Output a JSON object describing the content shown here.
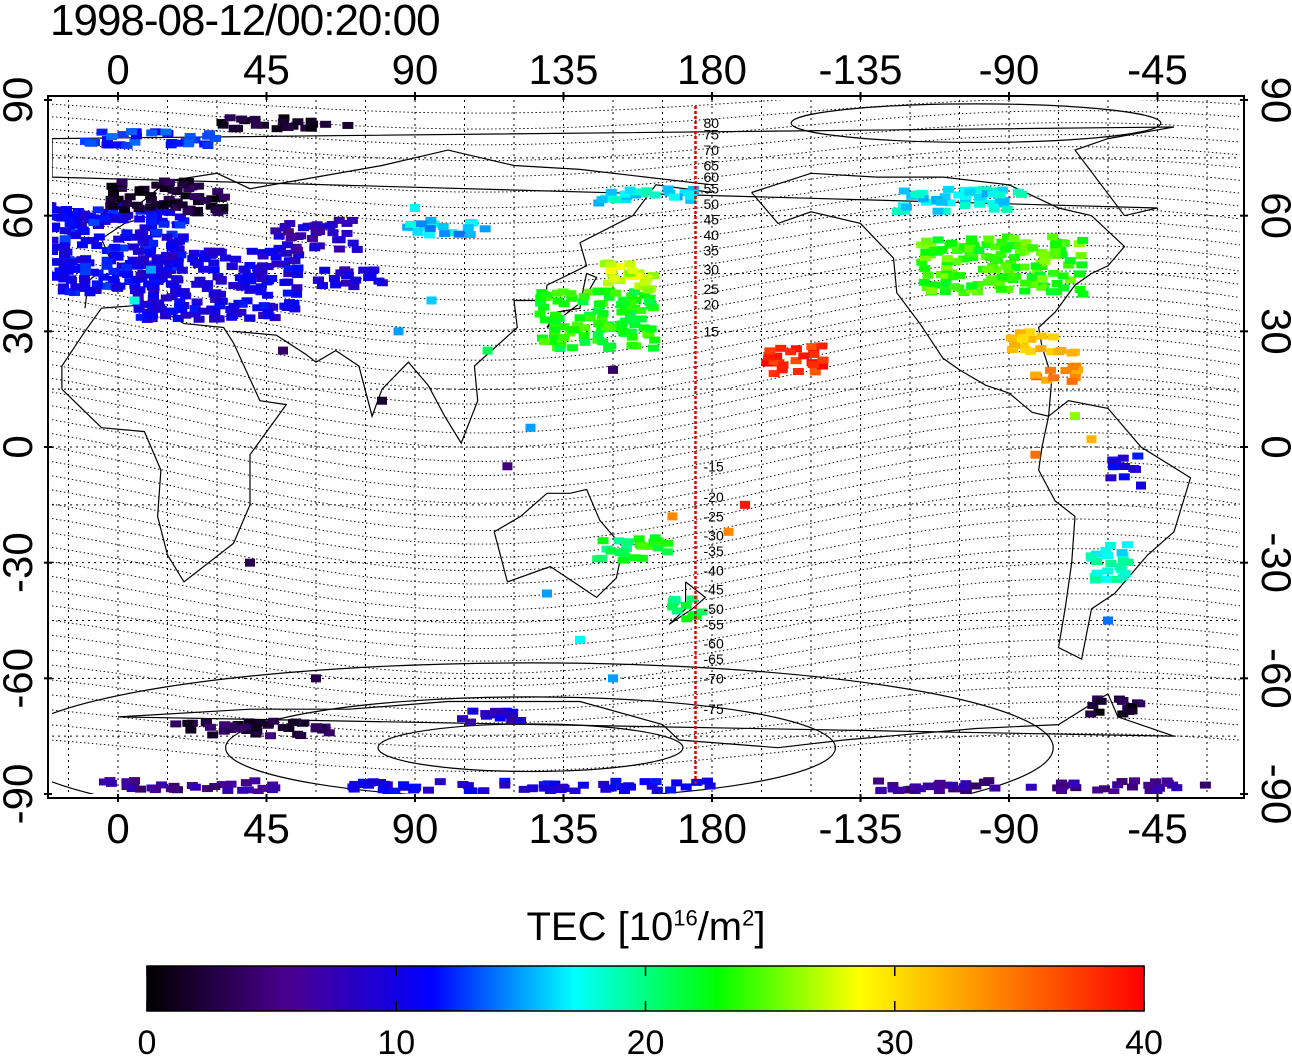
{
  "title": "1998-08-12/00:20:00",
  "map": {
    "projection": "equirectangular",
    "central_longitude": 160,
    "lon_range": [
      -20,
      340
    ],
    "lat_range": [
      -90,
      90
    ],
    "grid": true,
    "lon_ticks": [
      {
        "lon": 0,
        "label": "0"
      },
      {
        "lon": 45,
        "label": "45"
      },
      {
        "lon": 90,
        "label": "90"
      },
      {
        "lon": 135,
        "label": "135"
      },
      {
        "lon": 180,
        "label": "180"
      },
      {
        "lon": 225,
        "label": "-135"
      },
      {
        "lon": 270,
        "label": "-90"
      },
      {
        "lon": 315,
        "label": "-45"
      }
    ],
    "lat_ticks": [
      {
        "lat": 90,
        "label": "90"
      },
      {
        "lat": 60,
        "label": "60"
      },
      {
        "lat": 30,
        "label": "30"
      },
      {
        "lat": 0,
        "label": "0"
      },
      {
        "lat": -30,
        "label": "-30"
      },
      {
        "lat": -60,
        "label": "-60"
      },
      {
        "lat": -90,
        "label": "-90"
      }
    ],
    "meridian_line": {
      "lon": 175,
      "color": "#dd0000"
    },
    "magnetic_latitude_labels": [
      {
        "label": "80",
        "lat": 84
      },
      {
        "label": "75",
        "lat": 81
      },
      {
        "label": "70",
        "lat": 77
      },
      {
        "label": "65",
        "lat": 73
      },
      {
        "label": "60",
        "lat": 70
      },
      {
        "label": "55",
        "lat": 67
      },
      {
        "label": "50",
        "lat": 63
      },
      {
        "label": "45",
        "lat": 59
      },
      {
        "label": "40",
        "lat": 55
      },
      {
        "label": "35",
        "lat": 51
      },
      {
        "label": "30",
        "lat": 46
      },
      {
        "label": "25",
        "lat": 41
      },
      {
        "label": "20",
        "lat": 37
      },
      {
        "label": "15",
        "lat": 30
      },
      {
        "label": "-15",
        "lat": -5
      },
      {
        "label": "-20",
        "lat": -13
      },
      {
        "label": "-25",
        "lat": -18
      },
      {
        "label": "-30",
        "lat": -23
      },
      {
        "label": "-35",
        "lat": -27
      },
      {
        "label": "-40",
        "lat": -32
      },
      {
        "label": "-45",
        "lat": -37
      },
      {
        "label": "-50",
        "lat": -42
      },
      {
        "label": "-55",
        "lat": -46
      },
      {
        "label": "-60",
        "lat": -51
      },
      {
        "label": "-65",
        "lat": -55
      },
      {
        "label": "-70",
        "lat": -60
      },
      {
        "label": "-75",
        "lat": -68
      }
    ],
    "tec_patches": [
      {
        "lon": -10,
        "lat": 60,
        "w": 25,
        "h": 6,
        "tec": 10
      },
      {
        "lon": 0,
        "lat": 51,
        "w": 40,
        "h": 22,
        "tec": 11
      },
      {
        "lon": 15,
        "lat": 65,
        "w": 35,
        "h": 9,
        "tec": 2
      },
      {
        "lon": 30,
        "lat": 42,
        "w": 50,
        "h": 18,
        "tec": 10
      },
      {
        "lon": 60,
        "lat": 55,
        "w": 25,
        "h": 8,
        "tec": 8
      },
      {
        "lon": 70,
        "lat": 44,
        "w": 20,
        "h": 5,
        "tec": 9
      },
      {
        "lon": 10,
        "lat": 80,
        "w": 40,
        "h": 4,
        "tec": 12
      },
      {
        "lon": 50,
        "lat": 84,
        "w": 40,
        "h": 3,
        "tec": 2
      },
      {
        "lon": 100,
        "lat": 57,
        "w": 25,
        "h": 4,
        "tec": 16
      },
      {
        "lon": 145,
        "lat": 33,
        "w": 35,
        "h": 15,
        "tec": 23
      },
      {
        "lon": 155,
        "lat": 44,
        "w": 15,
        "h": 8,
        "tec": 27
      },
      {
        "lon": 160,
        "lat": 65,
        "w": 30,
        "h": 4,
        "tec": 17
      },
      {
        "lon": 150,
        "lat": -27,
        "w": 10,
        "h": 6,
        "tec": 21
      },
      {
        "lon": 162,
        "lat": -26,
        "w": 12,
        "h": 6,
        "tec": 23
      },
      {
        "lon": 172,
        "lat": -42,
        "w": 10,
        "h": 6,
        "tec": 21
      },
      {
        "lon": 205,
        "lat": 23,
        "w": 18,
        "h": 8,
        "tec": 38
      },
      {
        "lon": 268,
        "lat": 47,
        "w": 50,
        "h": 15,
        "tec": 24
      },
      {
        "lon": 255,
        "lat": 64,
        "w": 40,
        "h": 6,
        "tec": 17
      },
      {
        "lon": 280,
        "lat": 27,
        "w": 20,
        "h": 6,
        "tec": 31
      },
      {
        "lon": 285,
        "lat": 19,
        "w": 15,
        "h": 4,
        "tec": 34
      },
      {
        "lon": 304,
        "lat": -5,
        "w": 10,
        "h": 6,
        "tec": 10
      },
      {
        "lon": 300,
        "lat": -30,
        "w": 12,
        "h": 10,
        "tec": 18
      },
      {
        "lon": 302,
        "lat": -67,
        "w": 15,
        "h": 5,
        "tec": 2
      },
      {
        "lon": 125,
        "lat": -88,
        "w": 110,
        "h": 3,
        "tec": 10
      },
      {
        "lon": 20,
        "lat": -88,
        "w": 55,
        "h": 3,
        "tec": 6
      },
      {
        "lon": 280,
        "lat": -88,
        "w": 100,
        "h": 3,
        "tec": 6
      },
      {
        "lon": 42,
        "lat": -73,
        "w": 50,
        "h": 4,
        "tec": 3
      },
      {
        "lon": 115,
        "lat": -70,
        "w": 25,
        "h": 3,
        "tec": 9
      }
    ],
    "tec_points": [
      {
        "lon": 10,
        "lat": 46,
        "tec": 15
      },
      {
        "lon": 5,
        "lat": 38,
        "tec": 18
      },
      {
        "lon": 50,
        "lat": 25,
        "tec": 4
      },
      {
        "lon": 85,
        "lat": 30,
        "tec": 15
      },
      {
        "lon": 95,
        "lat": 38,
        "tec": 16
      },
      {
        "lon": 112,
        "lat": 25,
        "tec": 21
      },
      {
        "lon": 125,
        "lat": 5,
        "tec": 15
      },
      {
        "lon": 118,
        "lat": -5,
        "tec": 5
      },
      {
        "lon": 185,
        "lat": -22,
        "tec": 34
      },
      {
        "lon": 190,
        "lat": -15,
        "tec": 39
      },
      {
        "lon": 168,
        "lat": -18,
        "tec": 34
      },
      {
        "lon": 80,
        "lat": 12,
        "tec": 2
      },
      {
        "lon": 40,
        "lat": -30,
        "tec": 3
      },
      {
        "lon": 150,
        "lat": 20,
        "tec": 4
      },
      {
        "lon": 130,
        "lat": -38,
        "tec": 15
      },
      {
        "lon": 290,
        "lat": 8,
        "tec": 26
      },
      {
        "lon": 295,
        "lat": 2,
        "tec": 32
      },
      {
        "lon": 278,
        "lat": -2,
        "tec": 35
      },
      {
        "lon": 310,
        "lat": -10,
        "tec": 10
      },
      {
        "lon": 300,
        "lat": -45,
        "tec": 14
      },
      {
        "lon": 60,
        "lat": -60,
        "tec": 3
      },
      {
        "lon": 150,
        "lat": -60,
        "tec": 15
      },
      {
        "lon": 140,
        "lat": -50,
        "tec": 17
      },
      {
        "lon": 90,
        "lat": 62,
        "tec": 17
      }
    ]
  },
  "colorbar": {
    "label_main": "TEC  [10",
    "label_exp": "16",
    "label_unit": "/m",
    "label_unit_exp": "2",
    "label_close": "]",
    "min": 0,
    "max": 40,
    "ticks": [
      "0",
      "10",
      "20",
      "30",
      "40"
    ],
    "stops": [
      "#000000",
      "#4a0090",
      "#0000ff",
      "#00ffff",
      "#00ff00",
      "#ffff00",
      "#ff8000",
      "#ff0000"
    ]
  }
}
